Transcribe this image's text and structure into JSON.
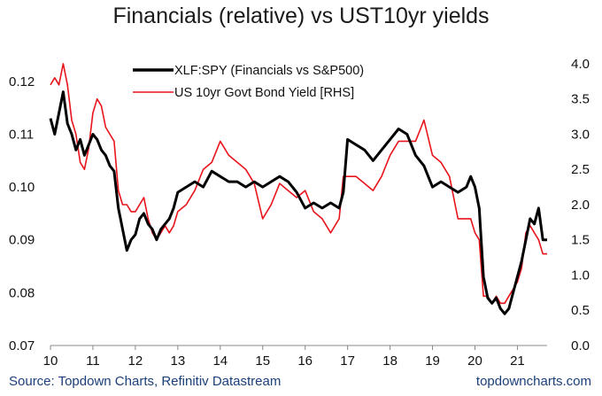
{
  "chart_data": {
    "type": "line",
    "title": "Financials (relative) vs UST10yr yields",
    "x_ticks": [
      "10",
      "11",
      "12",
      "13",
      "14",
      "15",
      "16",
      "17",
      "18",
      "19",
      "20",
      "21"
    ],
    "xlim": [
      2010.0,
      2021.7
    ],
    "y_left": {
      "lim": [
        0.07,
        0.125
      ],
      "ticks": [
        "0.07",
        "0.08",
        "0.09",
        "0.10",
        "0.11",
        "0.12"
      ],
      "tick_values": [
        0.07,
        0.08,
        0.09,
        0.1,
        0.11,
        0.12
      ]
    },
    "y_right": {
      "lim": [
        0.0,
        4.125
      ],
      "ticks": [
        "0.0",
        "0.5",
        "1.0",
        "1.5",
        "2.0",
        "2.5",
        "3.0",
        "3.5",
        "4.0"
      ],
      "tick_values": [
        0,
        0.5,
        1,
        1.5,
        2,
        2.5,
        3,
        3.5,
        4
      ]
    },
    "legend_position": "top-left",
    "series": [
      {
        "name": "XLF:SPY (Financials vs S&P500)",
        "axis": "left",
        "color": "#000000",
        "x": [
          2010.0,
          2010.1,
          2010.2,
          2010.3,
          2010.4,
          2010.5,
          2010.6,
          2010.7,
          2010.8,
          2010.9,
          2011.0,
          2011.1,
          2011.2,
          2011.3,
          2011.4,
          2011.5,
          2011.6,
          2011.7,
          2011.8,
          2011.9,
          2012.0,
          2012.1,
          2012.2,
          2012.3,
          2012.4,
          2012.5,
          2012.6,
          2012.7,
          2012.8,
          2012.9,
          2013.0,
          2013.2,
          2013.4,
          2013.6,
          2013.8,
          2014.0,
          2014.2,
          2014.4,
          2014.6,
          2014.8,
          2015.0,
          2015.2,
          2015.4,
          2015.6,
          2015.8,
          2016.0,
          2016.2,
          2016.4,
          2016.6,
          2016.8,
          2016.9,
          2017.0,
          2017.2,
          2017.4,
          2017.6,
          2017.8,
          2018.0,
          2018.2,
          2018.4,
          2018.6,
          2018.8,
          2019.0,
          2019.2,
          2019.4,
          2019.6,
          2019.8,
          2019.9,
          2020.0,
          2020.1,
          2020.2,
          2020.3,
          2020.4,
          2020.5,
          2020.6,
          2020.7,
          2020.8,
          2020.9,
          2021.0,
          2021.1,
          2021.2,
          2021.3,
          2021.4,
          2021.5,
          2021.6,
          2021.7
        ],
        "values": [
          0.113,
          0.11,
          0.114,
          0.118,
          0.112,
          0.11,
          0.107,
          0.109,
          0.106,
          0.108,
          0.11,
          0.109,
          0.107,
          0.106,
          0.104,
          0.103,
          0.096,
          0.092,
          0.088,
          0.09,
          0.091,
          0.094,
          0.095,
          0.093,
          0.092,
          0.09,
          0.092,
          0.093,
          0.094,
          0.096,
          0.099,
          0.1,
          0.101,
          0.1,
          0.103,
          0.102,
          0.101,
          0.101,
          0.1,
          0.101,
          0.1,
          0.101,
          0.102,
          0.101,
          0.099,
          0.096,
          0.097,
          0.096,
          0.097,
          0.096,
          0.099,
          0.109,
          0.108,
          0.107,
          0.105,
          0.107,
          0.109,
          0.111,
          0.11,
          0.106,
          0.104,
          0.1,
          0.101,
          0.1,
          0.099,
          0.1,
          0.102,
          0.1,
          0.096,
          0.083,
          0.079,
          0.078,
          0.079,
          0.077,
          0.076,
          0.077,
          0.08,
          0.083,
          0.086,
          0.09,
          0.094,
          0.093,
          0.096,
          0.09,
          0.09
        ]
      },
      {
        "name": "US 10yr Govt Bond Yield [RHS]",
        "axis": "right",
        "color": "#e8141c",
        "x": [
          2010.0,
          2010.1,
          2010.2,
          2010.3,
          2010.4,
          2010.5,
          2010.6,
          2010.7,
          2010.8,
          2010.9,
          2011.0,
          2011.1,
          2011.2,
          2011.3,
          2011.4,
          2011.5,
          2011.6,
          2011.7,
          2011.8,
          2011.9,
          2012.0,
          2012.1,
          2012.2,
          2012.3,
          2012.4,
          2012.5,
          2012.6,
          2012.7,
          2012.8,
          2012.9,
          2013.0,
          2013.2,
          2013.4,
          2013.6,
          2013.8,
          2014.0,
          2014.2,
          2014.4,
          2014.6,
          2014.8,
          2015.0,
          2015.2,
          2015.4,
          2015.6,
          2015.8,
          2016.0,
          2016.2,
          2016.4,
          2016.6,
          2016.8,
          2016.9,
          2017.0,
          2017.2,
          2017.4,
          2017.6,
          2017.8,
          2018.0,
          2018.2,
          2018.4,
          2018.6,
          2018.8,
          2019.0,
          2019.2,
          2019.4,
          2019.6,
          2019.8,
          2019.9,
          2020.0,
          2020.1,
          2020.2,
          2020.3,
          2020.4,
          2020.5,
          2020.6,
          2020.7,
          2020.8,
          2020.9,
          2021.0,
          2021.1,
          2021.2,
          2021.3,
          2021.4,
          2021.5,
          2021.6,
          2021.7
        ],
        "values": [
          3.7,
          3.8,
          3.7,
          4.0,
          3.7,
          3.2,
          3.0,
          2.6,
          2.5,
          2.8,
          3.3,
          3.5,
          3.4,
          3.1,
          3.0,
          2.9,
          2.2,
          2.0,
          2.0,
          1.9,
          1.9,
          2.0,
          2.1,
          1.8,
          1.6,
          1.5,
          1.6,
          1.7,
          1.6,
          1.7,
          1.9,
          2.0,
          2.2,
          2.5,
          2.6,
          2.9,
          2.7,
          2.6,
          2.5,
          2.3,
          1.8,
          2.0,
          2.3,
          2.2,
          2.1,
          2.2,
          1.9,
          1.8,
          1.6,
          1.8,
          2.4,
          2.4,
          2.4,
          2.3,
          2.2,
          2.4,
          2.7,
          2.9,
          2.9,
          2.9,
          3.2,
          2.7,
          2.6,
          2.4,
          1.8,
          1.8,
          1.8,
          1.6,
          1.5,
          0.7,
          0.7,
          0.6,
          0.7,
          0.6,
          0.6,
          0.7,
          0.8,
          0.9,
          1.1,
          1.6,
          1.7,
          1.6,
          1.5,
          1.3,
          1.3
        ]
      }
    ]
  },
  "footer": {
    "source": "Source: Topdown Charts, Refinitiv Datastream",
    "brand": "topdowncharts.com"
  }
}
